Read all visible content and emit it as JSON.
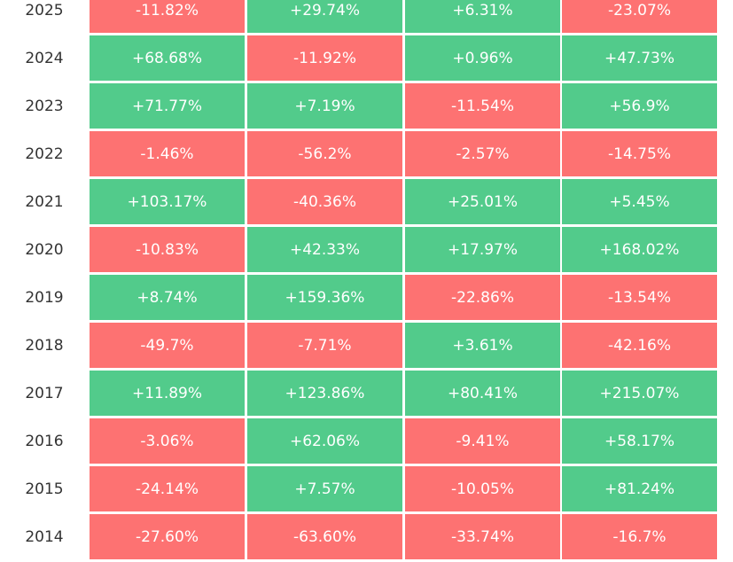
{
  "colors": {
    "positive": "#52cb8b",
    "negative": "#fd7272"
  },
  "chart_data": {
    "type": "table",
    "rows": [
      {
        "year": "2025",
        "values": [
          "-11.82%",
          "+29.74%",
          "+6.31%",
          "-23.07%"
        ]
      },
      {
        "year": "2024",
        "values": [
          "+68.68%",
          "-11.92%",
          "+0.96%",
          "+47.73%"
        ]
      },
      {
        "year": "2023",
        "values": [
          "+71.77%",
          "+7.19%",
          "-11.54%",
          "+56.9%"
        ]
      },
      {
        "year": "2022",
        "values": [
          "-1.46%",
          "-56.2%",
          "-2.57%",
          "-14.75%"
        ]
      },
      {
        "year": "2021",
        "values": [
          "+103.17%",
          "-40.36%",
          "+25.01%",
          "+5.45%"
        ]
      },
      {
        "year": "2020",
        "values": [
          "-10.83%",
          "+42.33%",
          "+17.97%",
          "+168.02%"
        ]
      },
      {
        "year": "2019",
        "values": [
          "+8.74%",
          "+159.36%",
          "-22.86%",
          "-13.54%"
        ]
      },
      {
        "year": "2018",
        "values": [
          "-49.7%",
          "-7.71%",
          "+3.61%",
          "-42.16%"
        ]
      },
      {
        "year": "2017",
        "values": [
          "+11.89%",
          "+123.86%",
          "+80.41%",
          "+215.07%"
        ]
      },
      {
        "year": "2016",
        "values": [
          "-3.06%",
          "+62.06%",
          "-9.41%",
          "+58.17%"
        ]
      },
      {
        "year": "2015",
        "values": [
          "-24.14%",
          "+7.57%",
          "-10.05%",
          "+81.24%"
        ]
      },
      {
        "year": "2014",
        "values": [
          "-27.60%",
          "-63.60%",
          "-33.74%",
          "-16.7%"
        ]
      }
    ]
  }
}
